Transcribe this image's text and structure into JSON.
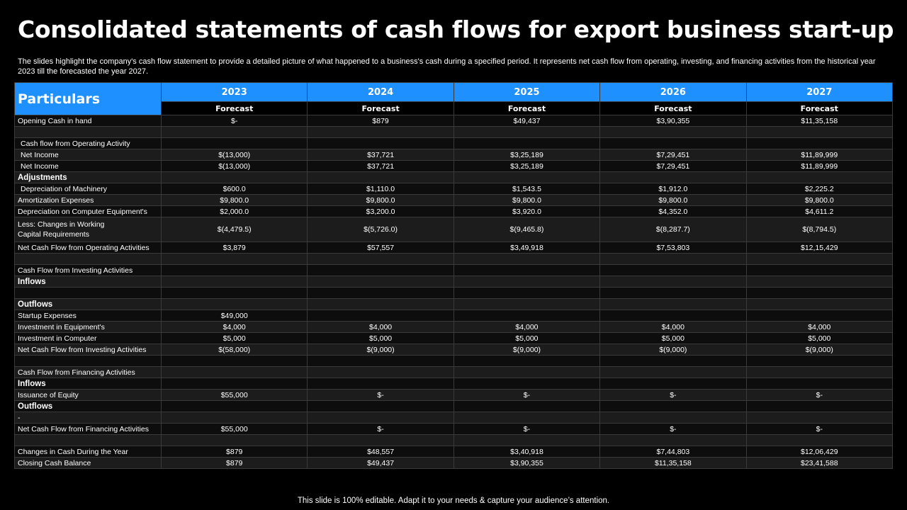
{
  "title": "Consolidated statements of cash flows for export business start-up",
  "description": "The slides highlight the company's cash flow statement to provide a detailed picture of what happened to a business's cash during a specified period. It represents net cash flow from operating, investing, and financing activities from the historical year 2023 till the forecasted the year 2027.",
  "table": {
    "particulars_label": "Particulars",
    "years": [
      "2023",
      "2024",
      "2025",
      "2026",
      "2027"
    ],
    "sub_headers": [
      "Forecast",
      "Forecast",
      "Forecast",
      "Forecast",
      "Forecast"
    ],
    "rows": [
      {
        "label": "Opening Cash in hand",
        "values": [
          "$-",
          "$879",
          "$49,437",
          "$3,90,355",
          "$11,35,158"
        ]
      },
      {
        "label": "",
        "values": [
          "",
          "",
          "",
          "",
          ""
        ]
      },
      {
        "label": "Cash flow from Operating Activity",
        "indent": true,
        "values": [
          "",
          "",
          "",
          "",
          ""
        ]
      },
      {
        "label": "Net Income",
        "indent": true,
        "values": [
          "$(13,000)",
          "$37,721",
          "$3,25,189",
          "$7,29,451",
          "$11,89,999"
        ]
      },
      {
        "label": "Net Income",
        "indent": true,
        "values": [
          "$(13,000)",
          "$37,721",
          "$3,25,189",
          "$7,29,451",
          "$11,89,999"
        ]
      },
      {
        "label": "Adjustments",
        "bold": true,
        "values": [
          "",
          "",
          "",
          "",
          ""
        ]
      },
      {
        "label": "Depreciation of Machinery",
        "indent": true,
        "values": [
          "$600.0",
          "$1,110.0",
          "$1,543.5",
          "$1,912.0",
          "$2,225.2"
        ]
      },
      {
        "label": "Amortization Expenses",
        "values": [
          "$9,800.0",
          "$9,800.0",
          "$9,800.0",
          "$9,800.0",
          "$9,800.0"
        ]
      },
      {
        "label": "Depreciation on Computer Equipment's",
        "values": [
          "$2,000.0",
          "$3,200.0",
          "$3,920.0",
          "$4,352.0",
          "$4,611.2"
        ]
      },
      {
        "label": "Less: Changes in Working\nCapital Requirements",
        "tall": true,
        "values": [
          "$(4,479.5)",
          "$(5,726.0)",
          "$(9,465.8)",
          "$(8,287.7)",
          "$(8,794.5)"
        ]
      },
      {
        "label": "Net Cash Flow from Operating Activities",
        "values": [
          "$3,879",
          "$57,557",
          "$3,49,918",
          "$7,53,803",
          "$12,15,429"
        ]
      },
      {
        "label": "",
        "values": [
          "",
          "",
          "",
          "",
          ""
        ]
      },
      {
        "label": "Cash Flow from Investing Activities",
        "values": [
          "",
          "",
          "",
          "",
          ""
        ]
      },
      {
        "label": "Inflows",
        "bold": true,
        "values": [
          "",
          "",
          "",
          "",
          ""
        ]
      },
      {
        "label": "",
        "values": [
          "",
          "",
          "",
          "",
          ""
        ]
      },
      {
        "label": "Outflows",
        "bold": true,
        "values": [
          "",
          "",
          "",
          "",
          ""
        ]
      },
      {
        "label": "Startup Expenses",
        "values": [
          "$49,000",
          "",
          "",
          "",
          ""
        ]
      },
      {
        "label": "Investment in Equipment's",
        "values": [
          "$4,000",
          "$4,000",
          "$4,000",
          "$4,000",
          "$4,000"
        ]
      },
      {
        "label": "Investment in Computer",
        "values": [
          "$5,000",
          "$5,000",
          "$5,000",
          "$5,000",
          "$5,000"
        ]
      },
      {
        "label": "Net Cash Flow from Investing Activities",
        "values": [
          "$(58,000)",
          "$(9,000)",
          "$(9,000)",
          "$(9,000)",
          "$(9,000)"
        ]
      },
      {
        "label": "",
        "values": [
          "",
          "",
          "",
          "",
          ""
        ]
      },
      {
        "label": "Cash Flow from Financing Activities",
        "values": [
          "",
          "",
          "",
          "",
          ""
        ]
      },
      {
        "label": "Inflows",
        "bold": true,
        "values": [
          "",
          "",
          "",
          "",
          ""
        ]
      },
      {
        "label": "Issuance of Equity",
        "values": [
          "$55,000",
          "$-",
          "$-",
          "$-",
          "$-"
        ]
      },
      {
        "label": "Outflows",
        "bold": true,
        "values": [
          "",
          "",
          "",
          "",
          ""
        ]
      },
      {
        "label": "-",
        "values": [
          "",
          "",
          "",
          "",
          ""
        ]
      },
      {
        "label": "Net Cash Flow from Financing Activities",
        "values": [
          "$55,000",
          "$-",
          "$-",
          "$-",
          "$-"
        ]
      },
      {
        "label": "",
        "values": [
          "",
          "",
          "",
          "",
          ""
        ]
      },
      {
        "label": "Changes in Cash During the Year",
        "values": [
          "$879",
          "$48,557",
          "$3,40,918",
          "$7,44,803",
          "$12,06,429"
        ]
      },
      {
        "label": "Closing Cash Balance",
        "values": [
          "$879",
          "$49,437",
          "$3,90,355",
          "$11,35,158",
          "$23,41,588"
        ]
      }
    ]
  },
  "footer": "This slide is 100% editable. Adapt it to your needs & capture your audience’s attention.",
  "colors": {
    "header_blue": "#1e90ff",
    "background": "#000000"
  }
}
